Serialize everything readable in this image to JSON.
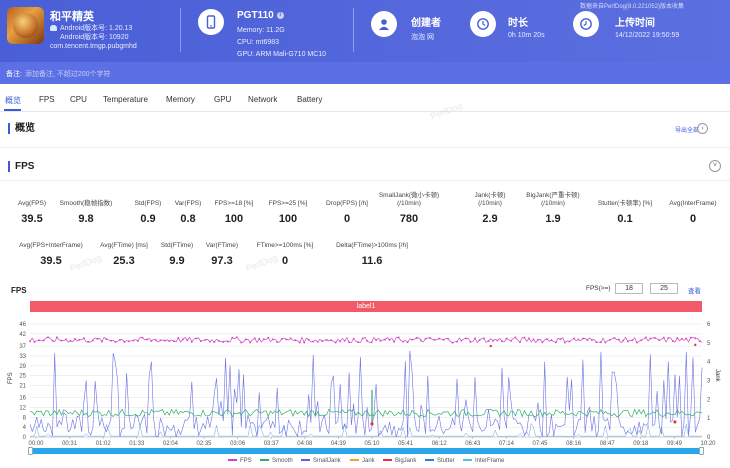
{
  "header": {
    "app_name": "和平精英",
    "android_version_line": "Android版本号: 1.20.13",
    "android_build_line": "Android版本号: 10920",
    "package": "com.tencent.tmgp.pubgmhd",
    "device_name": "PGT110",
    "memory": "Memory: 11.2G",
    "cpu": "CPU: mt6983",
    "gpu": "GPU: ARM Mali-G710 MC10",
    "creator_label": "创建者",
    "creator_value": "泡泡 网",
    "duration_label": "时长",
    "duration_value": "0h 10m 20s",
    "upload_label": "上传时间",
    "upload_value": "14/12/2022 19:50:59",
    "watermark": "数据来自PerfDog(8.0.221052)版本收集"
  },
  "note": {
    "label": "备注:",
    "placeholder": "添加备注, 不超过200个字符"
  },
  "tabs": [
    "概览",
    "FPS",
    "CPU",
    "Temperature",
    "Memory",
    "GPU",
    "Network",
    "Battery"
  ],
  "overview": {
    "title": "概览",
    "export_label": "导出全部"
  },
  "fps_section": {
    "title": "FPS",
    "metrics_row1": [
      {
        "label": "Avg(FPS)",
        "value": "39.5"
      },
      {
        "label": "Smooth(稳帧指数)",
        "value": "9.8"
      },
      {
        "label": "Std(FPS)",
        "value": "0.9"
      },
      {
        "label": "Var(FPS)",
        "value": "0.8"
      },
      {
        "label": "FPS>=18 [%]",
        "value": "100"
      },
      {
        "label": "FPS>=25 [%]",
        "value": "100"
      },
      {
        "label": "Drop(FPS) [/h]",
        "value": "0"
      },
      {
        "label": "SmallJank(微小卡顿)",
        "label2": "(/10min)",
        "value": "780"
      },
      {
        "label": "Jank(卡顿)",
        "label2": "(/10min)",
        "value": "2.9"
      },
      {
        "label": "BigJank(严重卡顿)",
        "label2": "(/10min)",
        "value": "1.9"
      },
      {
        "label": "Stutter(卡顿率) [%]",
        "value": "0.1"
      },
      {
        "label": "Avg(InterFrame)",
        "value": "0"
      }
    ],
    "metrics_row2": [
      {
        "label": "Avg(FPS+InterFrame)",
        "value": "39.5"
      },
      {
        "label": "Avg(FTime) [ms]",
        "value": "25.3"
      },
      {
        "label": "Std(FTime)",
        "value": "9.9"
      },
      {
        "label": "Var(FTime)",
        "value": "97.3"
      },
      {
        "label": "FTime>=100ms [%]",
        "value": "0"
      },
      {
        "label": "Delta(FTime)>100ms [/h]",
        "value": "11.6"
      }
    ]
  },
  "chart_controls": {
    "title": "FPS",
    "threshold_label": "FPS(>=)",
    "threshold_1": "18",
    "threshold_2": "25",
    "apply_label": "查看",
    "label_bar": "label1"
  },
  "colors": {
    "header_bg": "#4f63da",
    "accent": "#3b5bdb",
    "fps": "#d63fc8",
    "smooth": "#2fae6b",
    "smalljank": "#5b63e0",
    "jank": "#f0a030",
    "bigjank": "#e8343f",
    "stutter": "#2b7fd6",
    "interframe": "#48c7e8",
    "label_bar": "#f25a6a",
    "scrollbar": "#2aa7ea"
  },
  "chart_data": {
    "type": "line",
    "title": "FPS",
    "ylabel_left": "FPS",
    "ylabel_right": "Jank",
    "y_left_ticks": [
      "0",
      "4",
      "8",
      "12",
      "16",
      "21",
      "25",
      "29",
      "33",
      "37",
      "42",
      "46"
    ],
    "y_right_ticks": [
      "0",
      "1",
      "2",
      "3",
      "4",
      "5",
      "6"
    ],
    "ylim_left": [
      0,
      46
    ],
    "ylim_right": [
      0,
      6
    ],
    "x_ticks": [
      "00:00",
      "00:31",
      "01:02",
      "01:33",
      "02:04",
      "02:35",
      "03:06",
      "03:37",
      "04:08",
      "04:39",
      "05:10",
      "05:41",
      "06:12",
      "06:43",
      "07:14",
      "07:45",
      "08:16",
      "08:47",
      "09:18",
      "09:49",
      "10:20"
    ],
    "series": [
      {
        "name": "FPS",
        "approx_range": [
          38,
          41
        ],
        "typical": 39.5
      },
      {
        "name": "Smooth",
        "approx_range": [
          7,
          11
        ],
        "typical": 9.8
      },
      {
        "name": "SmallJank",
        "approx_range": [
          0,
          5
        ]
      },
      {
        "name": "Jank",
        "events_at": [
          "05:10"
        ]
      },
      {
        "name": "BigJank",
        "events_at": [
          "05:10",
          "09:55"
        ]
      },
      {
        "name": "Stutter",
        "approx_range": [
          0,
          1
        ]
      },
      {
        "name": "InterFrame",
        "approx_range": [
          0,
          0
        ]
      }
    ],
    "legend": [
      "FPS",
      "Smooth",
      "SmallJank",
      "Jank",
      "BigJank",
      "Stutter",
      "InterFrame"
    ],
    "grid": true,
    "legend_position": "bottom"
  }
}
